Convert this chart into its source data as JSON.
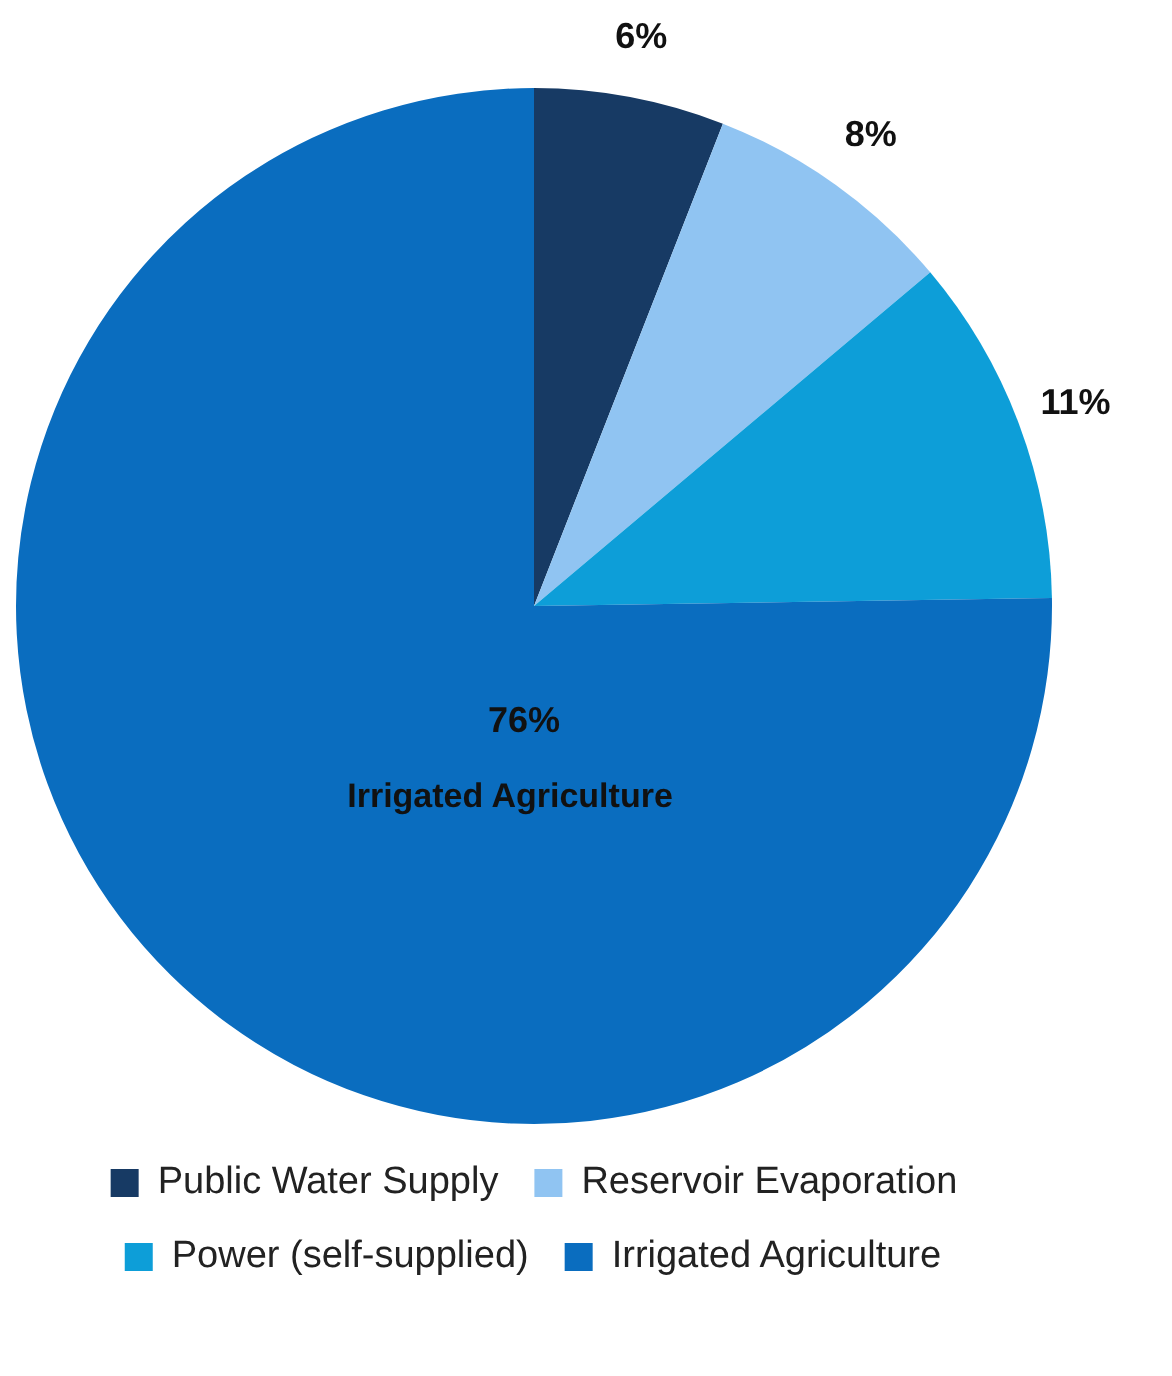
{
  "chart_data": {
    "type": "pie",
    "categories": [
      "Public Water Supply",
      "Reservoir Evaporation",
      "Power (self-supplied)",
      "Irrigated Agriculture"
    ],
    "values": [
      6,
      8,
      11,
      76
    ],
    "colors": [
      "#173a64",
      "#90c4f2",
      "#0d9ed8",
      "#0a6dbf"
    ],
    "value_labels": [
      "6%",
      "8%",
      "11%",
      "76%"
    ],
    "legend": "bottom"
  }
}
